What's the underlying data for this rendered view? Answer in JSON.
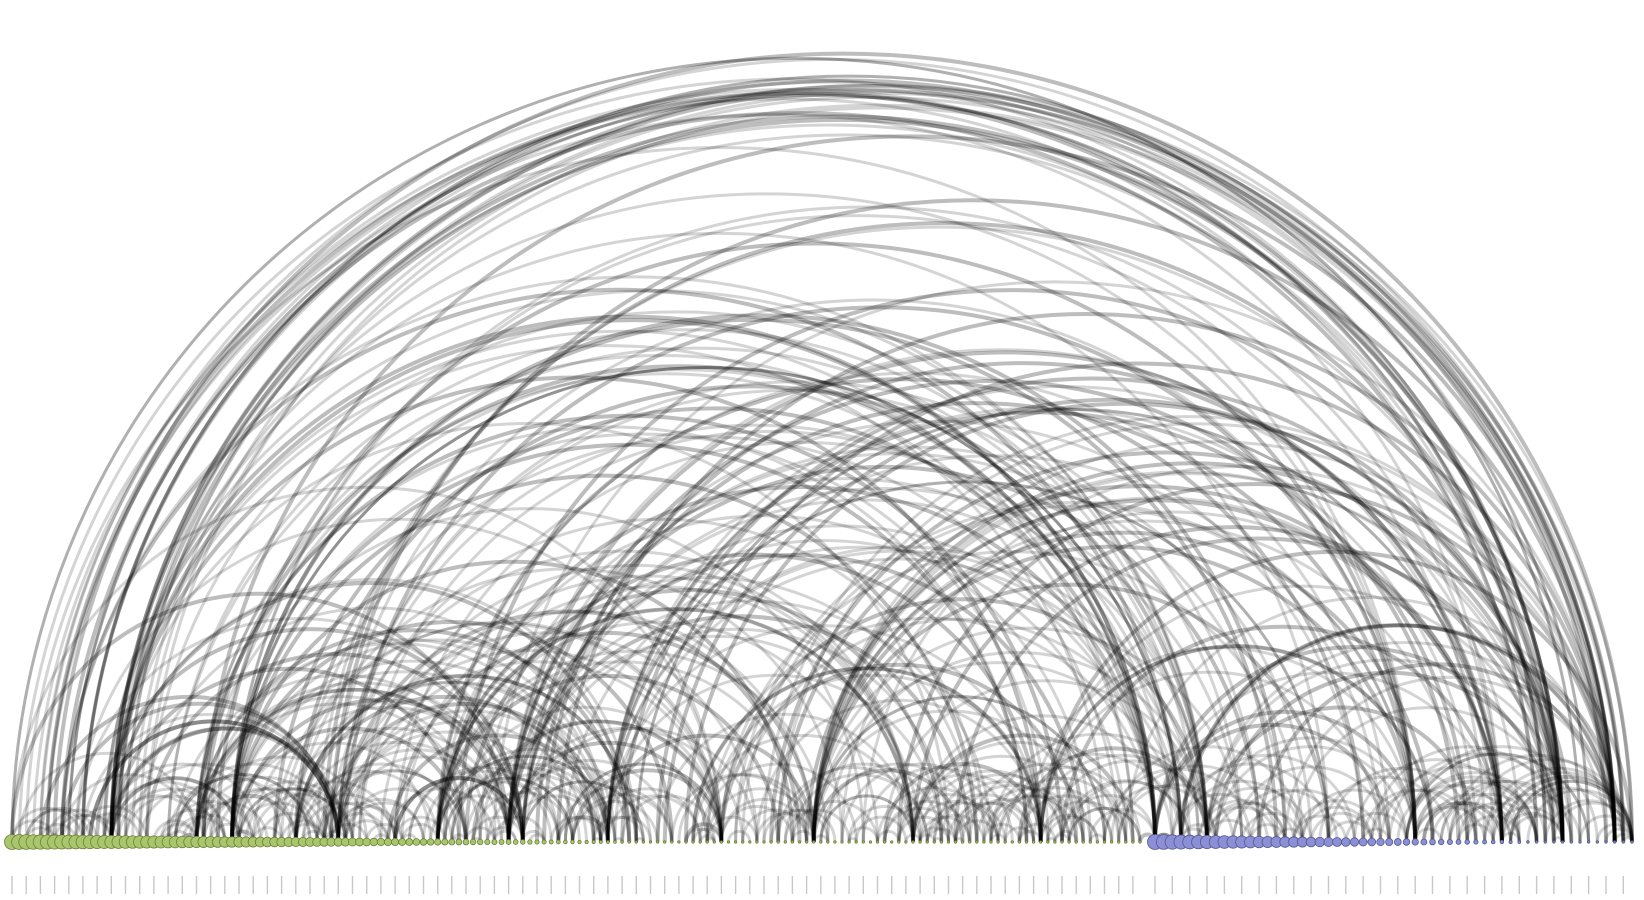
{
  "diagram": {
    "type": "arc-diagram",
    "node_groups": [
      {
        "name": "",
        "color": "#a8c66c",
        "count": 160
      },
      {
        "name": "",
        "color": "#8b8fd6",
        "count": 56
      }
    ],
    "edge_color": "#000000",
    "node_label_prefix_group_1": "",
    "node_label_prefix_group_2": ""
  }
}
